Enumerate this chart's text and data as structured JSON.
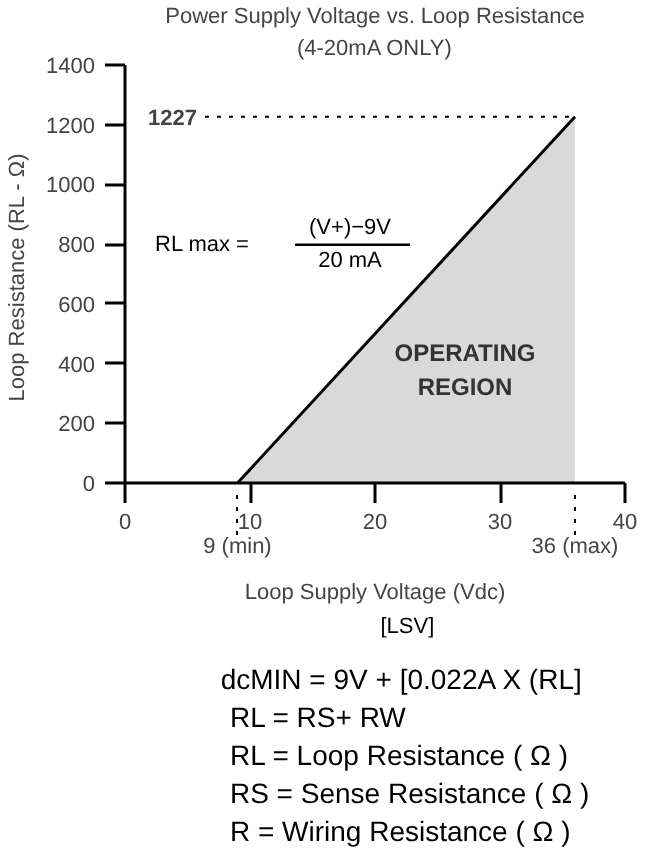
{
  "chart_data": {
    "type": "area",
    "title": "Power Supply Voltage vs. Loop Resistance",
    "subtitle": "(4-20mA ONLY)",
    "xlabel": "Loop Supply Voltage (Vdc)",
    "ylabel": "Loop Resistance (RL -  Ω)",
    "x": [
      9,
      36
    ],
    "series": [
      {
        "color": "#d9d9d9",
        "values": [
          0,
          1227
        ]
      }
    ],
    "xlim": [
      0,
      40
    ],
    "ylim": [
      0,
      1400
    ],
    "xticks": [
      0,
      10,
      20,
      30,
      40
    ],
    "yticks": [
      0,
      200,
      400,
      600,
      800,
      1000,
      1200,
      1400
    ],
    "grid": false,
    "ref_lines": [
      {
        "axis": "y",
        "value": 1227,
        "label": "1227",
        "line_style": "dotted"
      },
      {
        "axis": "x",
        "value": 9,
        "label": "9 (min)",
        "line_style": "dotted"
      },
      {
        "axis": "x",
        "value": 36,
        "label": "36 (max)",
        "line_style": "dotted"
      }
    ],
    "annotations": [
      "OPERATING\nREGION",
      "RL max =",
      "(V+)−9V",
      "20 mA",
      "[LSV]",
      "dcMIN = 9V + [0.022A X (RL]",
      "RL = RS+ RW",
      "RL = Loop Resistance ( Ω )",
      "RS = Sense Resistance ( Ω )",
      "R   = Wiring Resistance ( Ω )"
    ]
  }
}
